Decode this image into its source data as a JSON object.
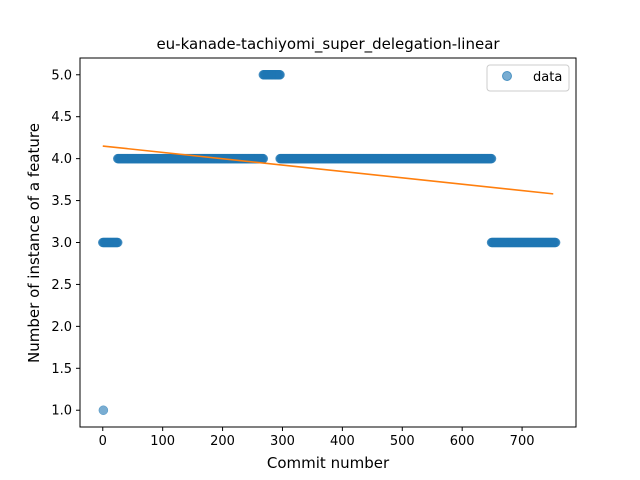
{
  "chart_data": {
    "type": "scatter",
    "title": "eu-kanade-tachiyomi_super_delegation-linear",
    "xlabel": "Commit number",
    "ylabel": "Number of instance of a feature",
    "xlim": [
      -38,
      790
    ],
    "ylim": [
      0.8,
      5.2
    ],
    "x_ticks": [
      0,
      100,
      200,
      300,
      400,
      500,
      600,
      700
    ],
    "y_ticks": [
      1.0,
      1.5,
      2.0,
      2.5,
      3.0,
      3.5,
      4.0,
      4.5,
      5.0
    ],
    "x_tick_labels": [
      "0",
      "100",
      "200",
      "300",
      "400",
      "500",
      "600",
      "700"
    ],
    "y_tick_labels": [
      "1.0",
      "1.5",
      "2.0",
      "2.5",
      "3.0",
      "3.5",
      "4.0",
      "4.5",
      "5.0"
    ],
    "grid": false,
    "legend": {
      "placement": "top-right",
      "entries": [
        "data"
      ]
    },
    "series": [
      {
        "name": "data",
        "kind": "scatter",
        "color": "#1f77b4",
        "segments": [
          {
            "x_start": 1,
            "x_end": 1,
            "y": 1
          },
          {
            "x_start": 0,
            "x_end": 25,
            "y": 3
          },
          {
            "x_start": 25,
            "x_end": 268,
            "y": 4
          },
          {
            "x_start": 268,
            "x_end": 296,
            "y": 5
          },
          {
            "x_start": 296,
            "x_end": 649,
            "y": 4
          },
          {
            "x_start": 649,
            "x_end": 756,
            "y": 3
          }
        ]
      },
      {
        "kind": "line",
        "color": "#ff7f0e",
        "x": [
          0,
          752
        ],
        "y": [
          4.15,
          3.58
        ]
      }
    ]
  }
}
